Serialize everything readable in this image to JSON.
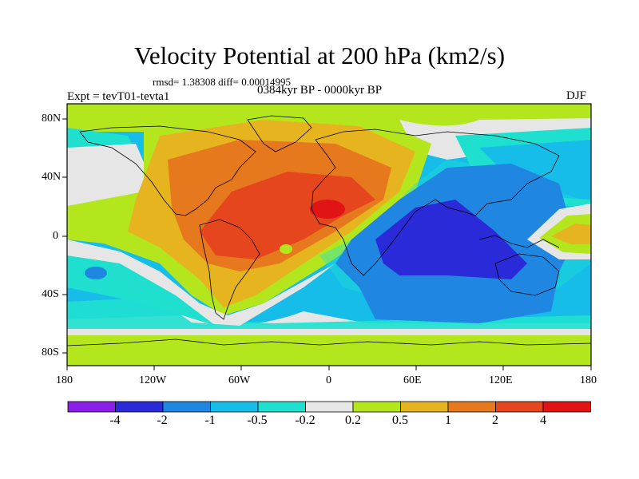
{
  "title": "Velocity Potential at 200 hPa (km2/s)",
  "stats": "rmsd= 1.38308 diff= 0.00014995",
  "experiment": "Expt = tevT01-tevta1",
  "period": "0384kyr BP - 0000kyr BP",
  "season": "DJF",
  "lat_labels": [
    "80N",
    "40N",
    "0",
    "40S",
    "80S"
  ],
  "lon_labels": [
    "180",
    "120W",
    "60W",
    "0",
    "60E",
    "120E",
    "180"
  ],
  "colorbar": {
    "labels": [
      "-4",
      "-2",
      "-1",
      "-0.5",
      "-0.2",
      "0.2",
      "0.5",
      "1",
      "2",
      "4"
    ],
    "colors": [
      "#8a1ee6",
      "#2a2ad8",
      "#1f86e2",
      "#16bde8",
      "#1fe0cf",
      "#e6e6e6",
      "#b4e61e",
      "#e6b41e",
      "#e6781e",
      "#e6461e",
      "#e01414"
    ]
  }
}
